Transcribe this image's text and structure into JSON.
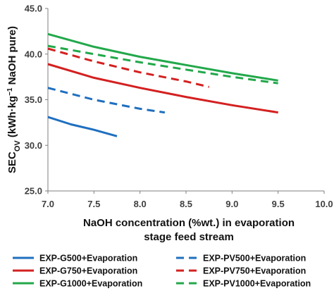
{
  "chart_data": {
    "type": "line",
    "xlabel": "NaOH concentration (%wt.) in evaporation stage feed stream",
    "ylabel_parts": {
      "main": "SEC",
      "sub": "OV",
      "rest": " (kWh·kg",
      "sup": "−1",
      "tail": " NaOH pure)"
    },
    "xlim": [
      7.0,
      10.0
    ],
    "ylim": [
      25.0,
      45.0
    ],
    "xticks": [
      "7.0",
      "7.5",
      "8.0",
      "8.5",
      "9.0",
      "9.5",
      "10.0"
    ],
    "yticks": [
      "25.0",
      "30.0",
      "35.0",
      "40.0",
      "45.0"
    ],
    "grid": false,
    "legend_position": "bottom",
    "series": [
      {
        "name": "EXP-G500+Evaporation",
        "color": "#1f6fbf",
        "dash": "solid",
        "x": [
          7.0,
          7.25,
          7.5,
          7.75
        ],
        "y": [
          33.1,
          32.3,
          31.7,
          31.0
        ]
      },
      {
        "name": "EXP-PV500+Evaporation",
        "color": "#1f6fbf",
        "dash": "dashed",
        "x": [
          7.0,
          7.5,
          8.0,
          8.27
        ],
        "y": [
          36.3,
          35.0,
          34.0,
          33.6
        ]
      },
      {
        "name": "EXP-G750+Evaporation",
        "color": "#d42020",
        "dash": "solid",
        "x": [
          7.0,
          7.5,
          8.0,
          8.5,
          9.0,
          9.5
        ],
        "y": [
          38.9,
          37.4,
          36.3,
          35.3,
          34.4,
          33.6
        ]
      },
      {
        "name": "EXP-PV750+Evaporation",
        "color": "#d42020",
        "dash": "dashed",
        "x": [
          7.0,
          7.5,
          8.0,
          8.5,
          8.75
        ],
        "y": [
          40.6,
          39.2,
          38.0,
          37.0,
          36.4
        ]
      },
      {
        "name": "EXP-G1000+Evaporation",
        "color": "#22a84a",
        "dash": "solid",
        "x": [
          7.0,
          7.5,
          8.0,
          8.5,
          9.0,
          9.5
        ],
        "y": [
          42.2,
          40.8,
          39.7,
          38.8,
          37.9,
          37.1
        ]
      },
      {
        "name": "EXP-PV1000+Evaporation",
        "color": "#22a84a",
        "dash": "dashed",
        "x": [
          7.0,
          7.5,
          8.0,
          8.5,
          9.0,
          9.5
        ],
        "y": [
          40.9,
          40.0,
          39.1,
          38.3,
          37.5,
          36.8
        ]
      }
    ],
    "legend_order": [
      0,
      1,
      2,
      3,
      4,
      5
    ]
  }
}
